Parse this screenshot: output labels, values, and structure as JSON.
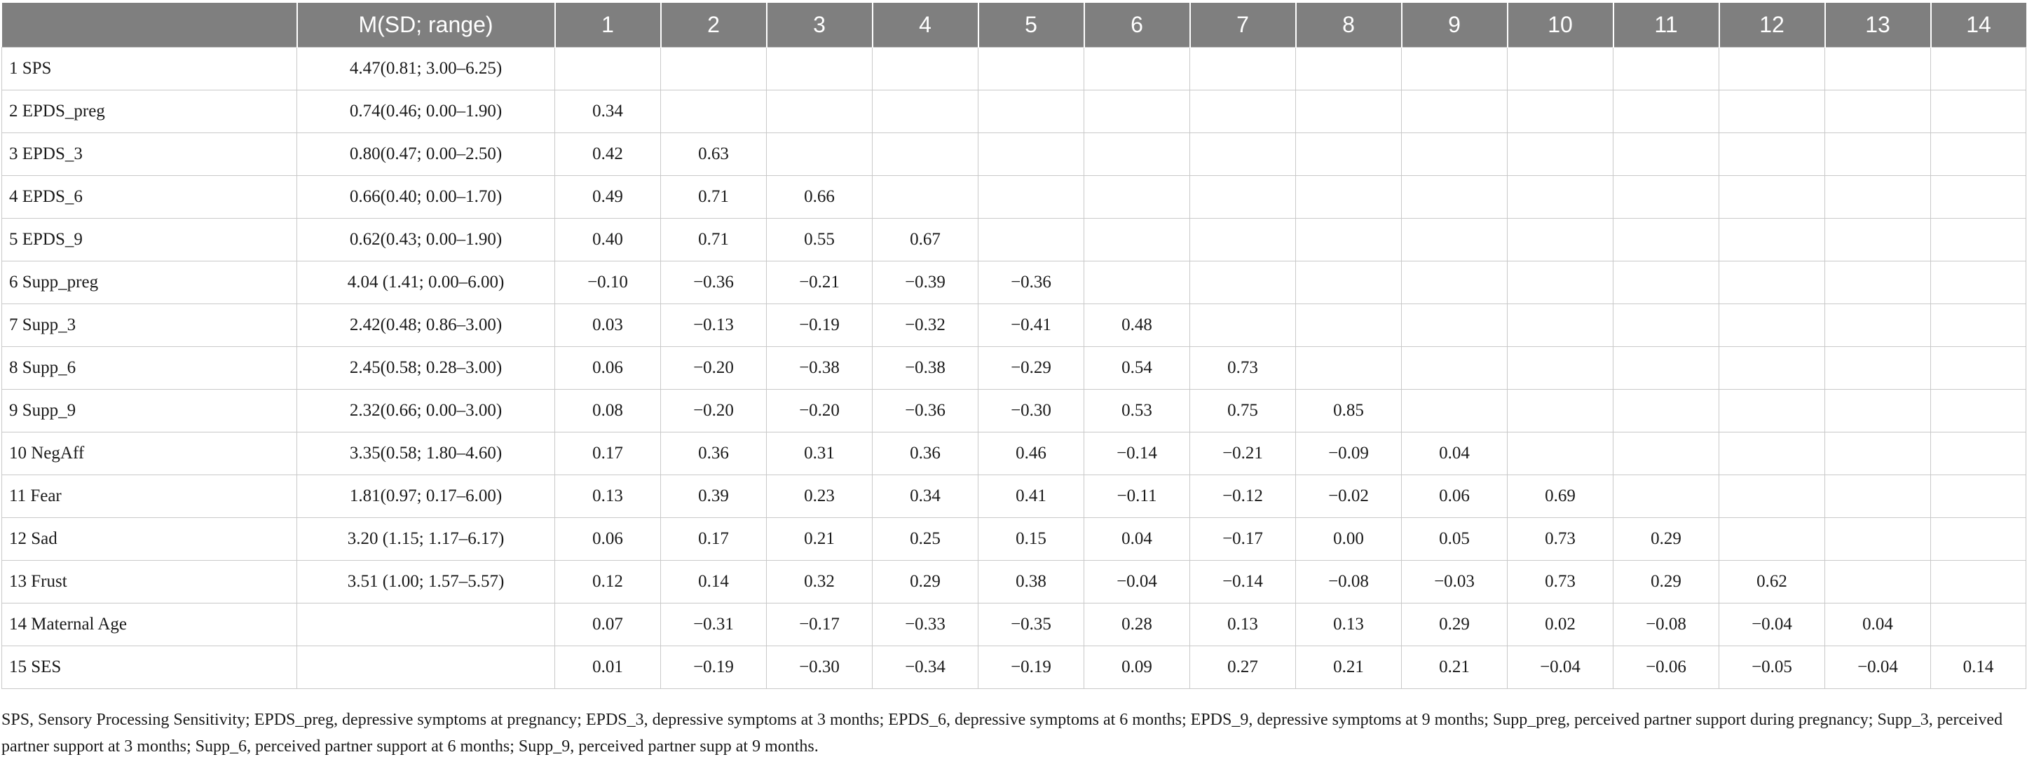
{
  "header": [
    "",
    "M(SD; range)",
    "1",
    "2",
    "3",
    "4",
    "5",
    "6",
    "7",
    "8",
    "9",
    "10",
    "11",
    "12",
    "13",
    "14"
  ],
  "rows": [
    {
      "var": "1 SPS",
      "desc": "4.47(0.81; 3.00–6.25)",
      "cells": [
        "",
        "",
        "",
        "",
        "",
        "",
        "",
        "",
        "",
        "",
        "",
        "",
        "",
        ""
      ]
    },
    {
      "var": "2 EPDS_preg",
      "desc": "0.74(0.46; 0.00–1.90)",
      "cells": [
        "0.34",
        "",
        "",
        "",
        "",
        "",
        "",
        "",
        "",
        "",
        "",
        "",
        "",
        ""
      ]
    },
    {
      "var": "3 EPDS_3",
      "desc": "0.80(0.47; 0.00–2.50)",
      "cells": [
        "0.42",
        "0.63",
        "",
        "",
        "",
        "",
        "",
        "",
        "",
        "",
        "",
        "",
        "",
        ""
      ]
    },
    {
      "var": "4 EPDS_6",
      "desc": "0.66(0.40; 0.00–1.70)",
      "cells": [
        "0.49",
        "0.71",
        "0.66",
        "",
        "",
        "",
        "",
        "",
        "",
        "",
        "",
        "",
        "",
        ""
      ]
    },
    {
      "var": "5 EPDS_9",
      "desc": "0.62(0.43; 0.00–1.90)",
      "cells": [
        "0.40",
        "0.71",
        "0.55",
        "0.67",
        "",
        "",
        "",
        "",
        "",
        "",
        "",
        "",
        "",
        ""
      ]
    },
    {
      "var": "6 Supp_preg",
      "desc": "4.04 (1.41; 0.00–6.00)",
      "cells": [
        "−0.10",
        "−0.36",
        "−0.21",
        "−0.39",
        "−0.36",
        "",
        "",
        "",
        "",
        "",
        "",
        "",
        "",
        ""
      ]
    },
    {
      "var": "7 Supp_3",
      "desc": "2.42(0.48; 0.86–3.00)",
      "cells": [
        "0.03",
        "−0.13",
        "−0.19",
        "−0.32",
        "−0.41",
        "0.48",
        "",
        "",
        "",
        "",
        "",
        "",
        "",
        ""
      ]
    },
    {
      "var": "8 Supp_6",
      "desc": "2.45(0.58; 0.28–3.00)",
      "cells": [
        "0.06",
        "−0.20",
        "−0.38",
        "−0.38",
        "−0.29",
        "0.54",
        "0.73",
        "",
        "",
        "",
        "",
        "",
        "",
        ""
      ]
    },
    {
      "var": "9 Supp_9",
      "desc": "2.32(0.66; 0.00–3.00)",
      "cells": [
        "0.08",
        "−0.20",
        "−0.20",
        "−0.36",
        "−0.30",
        "0.53",
        "0.75",
        "0.85",
        "",
        "",
        "",
        "",
        "",
        ""
      ]
    },
    {
      "var": "10 NegAff",
      "desc": "3.35(0.58; 1.80–4.60)",
      "cells": [
        "0.17",
        "0.36",
        "0.31",
        "0.36",
        "0.46",
        "−0.14",
        "−0.21",
        "−0.09",
        "0.04",
        "",
        "",
        "",
        "",
        ""
      ]
    },
    {
      "var": "11 Fear",
      "desc": "1.81(0.97; 0.17–6.00)",
      "cells": [
        "0.13",
        "0.39",
        "0.23",
        "0.34",
        "0.41",
        "−0.11",
        "−0.12",
        "−0.02",
        "0.06",
        "0.69",
        "",
        "",
        "",
        ""
      ]
    },
    {
      "var": "12 Sad",
      "desc": "3.20 (1.15; 1.17–6.17)",
      "cells": [
        "0.06",
        "0.17",
        "0.21",
        "0.25",
        "0.15",
        "0.04",
        "−0.17",
        "0.00",
        "0.05",
        "0.73",
        "0.29",
        "",
        "",
        ""
      ]
    },
    {
      "var": "13 Frust",
      "desc": "3.51 (1.00; 1.57–5.57)",
      "cells": [
        "0.12",
        "0.14",
        "0.32",
        "0.29",
        "0.38",
        "−0.04",
        "−0.14",
        "−0.08",
        "−0.03",
        "0.73",
        "0.29",
        "0.62",
        "",
        ""
      ]
    },
    {
      "var": "14 Maternal Age",
      "desc": "",
      "cells": [
        "0.07",
        "−0.31",
        "−0.17",
        "−0.33",
        "−0.35",
        "0.28",
        "0.13",
        "0.13",
        "0.29",
        "0.02",
        "−0.08",
        "−0.04",
        "0.04",
        ""
      ]
    },
    {
      "var": "15 SES",
      "desc": "",
      "cells": [
        "0.01",
        "−0.19",
        "−0.30",
        "−0.34",
        "−0.19",
        "0.09",
        "0.27",
        "0.21",
        "0.21",
        "−0.04",
        "−0.06",
        "−0.05",
        "−0.04",
        "0.14"
      ]
    }
  ],
  "footnote": "SPS, Sensory Processing Sensitivity; EPDS_preg, depressive symptoms at pregnancy; EPDS_3, depressive symptoms at 3 months; EPDS_6, depressive symptoms at 6 months; EPDS_9, depressive symptoms at 9 months; Supp_preg, perceived partner support during pregnancy; Supp_3, perceived partner support at 3 months; Supp_6, perceived partner support at 6 months; Supp_9, perceived partner supp at 9 months."
}
